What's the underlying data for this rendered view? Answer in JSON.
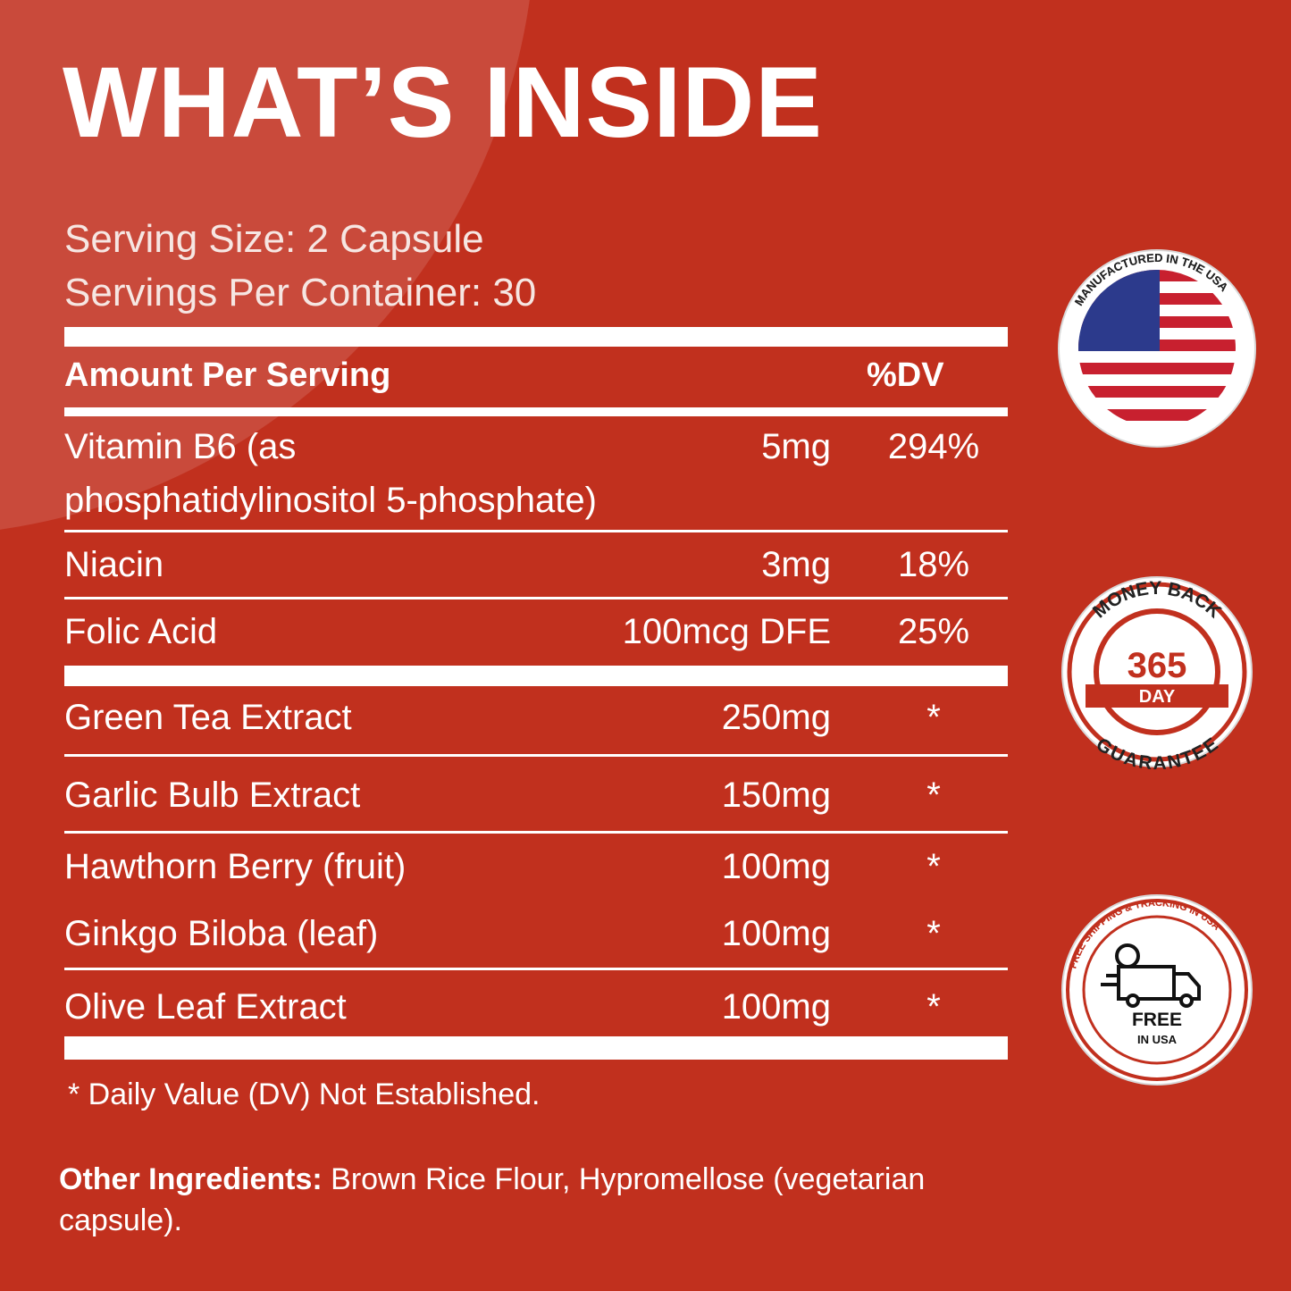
{
  "title": "WHAT’S INSIDE",
  "serving": [
    "Serving Size: 2 Capsule",
    "Servings Per Container: 30"
  ],
  "table": {
    "header": [
      "Amount Per Serving",
      "%DV"
    ],
    "rows": [
      [
        "Vitamin B6 (as\nphosphatidylinositol 5-phosphate)",
        "5mg",
        "294%"
      ],
      [
        "Niacin",
        "3mg",
        "18%"
      ],
      [
        "Folic Acid",
        "100mcg DFE",
        "25%"
      ],
      [
        "Green Tea Extract",
        "250mg",
        "*"
      ],
      [
        "Garlic Bulb Extract",
        "150mg",
        "*"
      ],
      [
        "Hawthorn Berry (fruit)",
        "100mg",
        "*"
      ],
      [
        "Ginkgo Biloba (leaf)",
        "100mg",
        "*"
      ],
      [
        "Olive Leaf Extract",
        "100mg",
        "*"
      ]
    ]
  },
  "footnote": "* Daily Value (DV) Not Established.",
  "other_ingredients": {
    "label": "Other Ingredients:",
    "text": " Brown Rice Flour, Hypromellose (vegetarian capsule)."
  },
  "badges": {
    "made_in_usa": {
      "arc_text": "MANUFACTURED IN THE USA"
    },
    "guarantee": {
      "top": "MONEY BACK",
      "number": "365",
      "unit": "DAY",
      "bottom": "GUARANTEE"
    },
    "shipping": {
      "arc_text": "FREE SHIPPING & TRACKING IN USA",
      "label": "FREE",
      "sub": "IN USA"
    }
  }
}
